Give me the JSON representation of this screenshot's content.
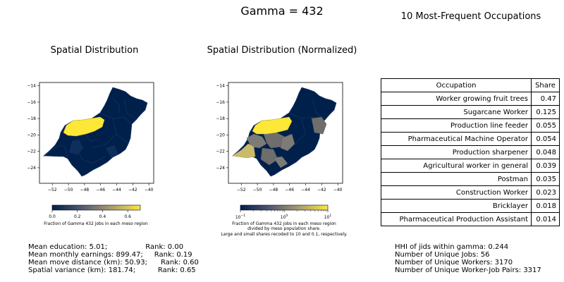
{
  "suptitle": "Gamma = 432",
  "chart_data": [
    {
      "type": "choropleth-map",
      "title": "Spatial Distribution",
      "xticks": [
        -52,
        -50,
        -48,
        -46,
        -44,
        -42,
        -40
      ],
      "yticks": [
        -14,
        -16,
        -18,
        -20,
        -22,
        -24
      ],
      "colorbar": {
        "scale": "linear",
        "ticks": [
          "0.0",
          "0.2",
          "0.4",
          "0.6"
        ],
        "tick_values": [
          0.0,
          0.2,
          0.4,
          0.6
        ],
        "range": [
          0.0,
          0.7
        ],
        "label": "Fraction of Gamma 432 jobs in each meso region"
      },
      "highlight_region_value": 0.7
    },
    {
      "type": "choropleth-map",
      "title": "Spatial Distribution (Normalized)",
      "xticks": [
        -52,
        -50,
        -48,
        -46,
        -44,
        -42,
        -40
      ],
      "yticks": [
        -14,
        -16,
        -18,
        -20,
        -22,
        -24
      ],
      "colorbar": {
        "scale": "log",
        "ticks": [
          {
            "base": "10",
            "exp": "−1"
          },
          {
            "base": "10",
            "exp": "0"
          },
          {
            "base": "10",
            "exp": "1"
          }
        ],
        "tick_values": [
          0.1,
          1,
          10
        ],
        "range": [
          0.1,
          10
        ],
        "label_lines": [
          "Fraction of Gamma 432 jobs in each meso region",
          "divided by meso population share.",
          "Large and small shares recoded to 10 and 0.1, respectively."
        ]
      }
    },
    {
      "type": "table",
      "title": "10 Most-Frequent Occupations",
      "columns": [
        "Occupation",
        "Share"
      ],
      "rows": [
        {
          "occupation": "Worker growing fruit trees",
          "share": "0.47"
        },
        {
          "occupation": "Sugarcane Worker",
          "share": "0.125"
        },
        {
          "occupation": "Production line feeder",
          "share": "0.055"
        },
        {
          "occupation": "Pharmaceutical Machine Operator",
          "share": "0.054"
        },
        {
          "occupation": "Production sharpener",
          "share": "0.048"
        },
        {
          "occupation": "Agricultural worker in general",
          "share": "0.039"
        },
        {
          "occupation": "Postman",
          "share": "0.035"
        },
        {
          "occupation": "Construction Worker",
          "share": "0.023"
        },
        {
          "occupation": "Bricklayer",
          "share": "0.018"
        },
        {
          "occupation": "Pharmaceutical Production Assistant",
          "share": "0.014"
        }
      ]
    }
  ],
  "stats_left": [
    "Mean education: 5.01;                 Rank: 0.00",
    "Mean monthly earnings: 899.47;     Rank: 0.19",
    "Mean move distance (km): 50.93;      Rank: 0.60",
    "Spatial variance (km): 181.74;          Rank: 0.65"
  ],
  "stats_right": [
    "HHI of jids within gamma: 0.244",
    "Number of Unique Jobs: 56",
    "Number of Unique Workers: 3170",
    "Number of Unique Worker-Job Pairs: 3317"
  ],
  "colors": {
    "cividis_dark": "#00204c",
    "cividis_mid": "#7c7b78",
    "cividis_light": "#fde737",
    "background": "#ffffff",
    "border": "#000000"
  }
}
